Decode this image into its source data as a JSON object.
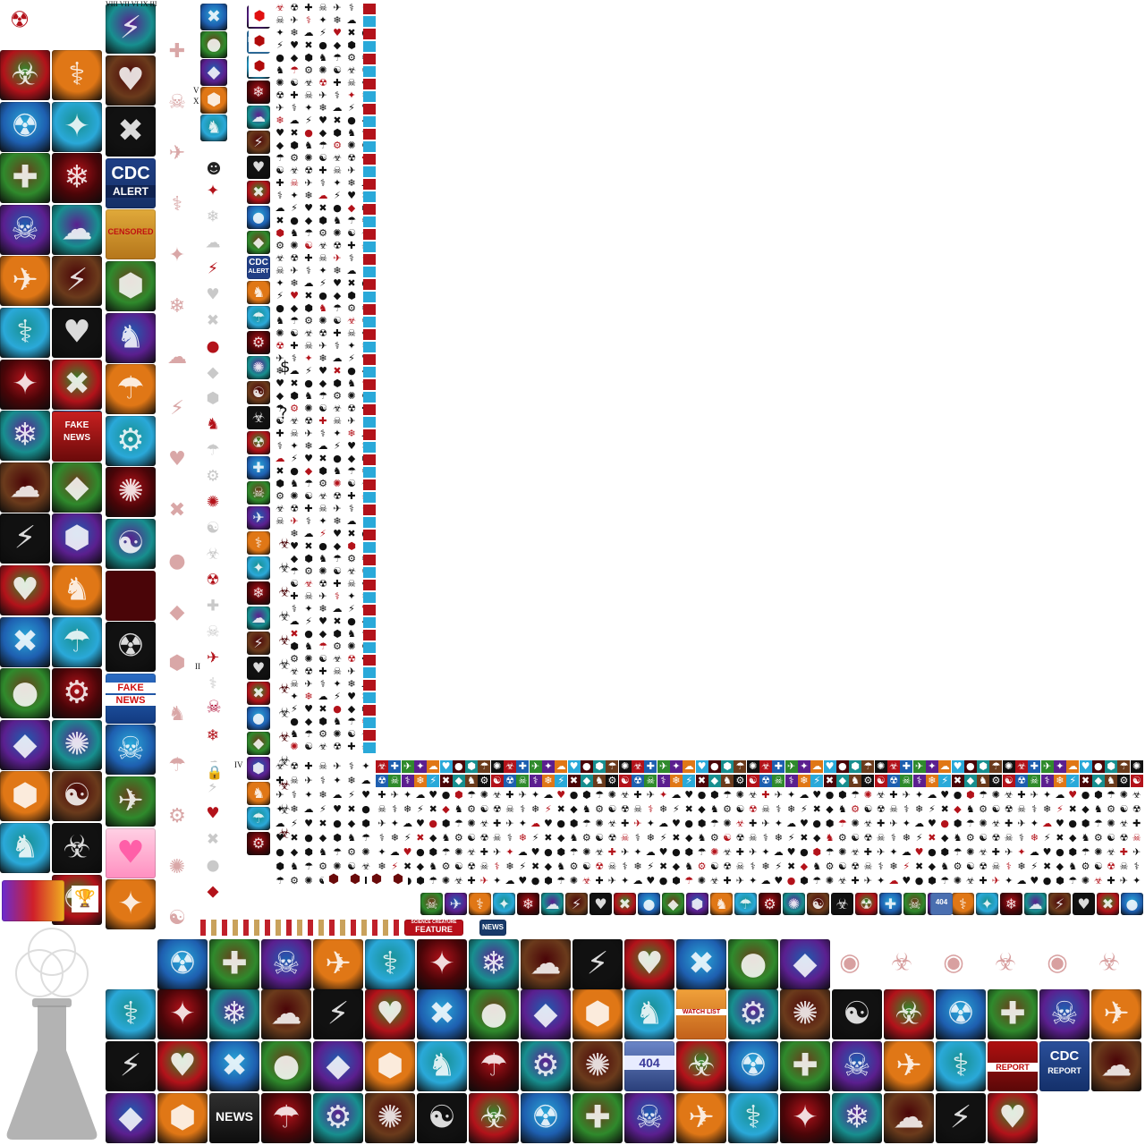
{
  "sheet": {
    "background": "#ffffff"
  },
  "labels": {
    "roman_top": "VIII VII VI IX III",
    "roman_v": "V",
    "roman_x": "X",
    "roman_ii": "II",
    "roman_iv": "IV",
    "cdc_alert_1": "CDC",
    "cdc_alert_2": "ALERT",
    "censored": "CENSORED",
    "fake_news_1": "FAKE",
    "fake_news_2": "NEWS",
    "news_small": "NEWS",
    "cdc_small_1": "CDC",
    "cdc_small_2": "ALERT",
    "feature_top": "SCIENCE CREATURE",
    "feature": "FEATURE",
    "news_banner": "NEWS",
    "watch_list": "WATCH LIST",
    "error_404": "404",
    "report": "REPORT",
    "cdc_report_1": "CDC",
    "cdc_report_2": "REPORT",
    "news_bottom": "NEWS",
    "dollar": "$",
    "question": "?",
    "error_404_small": "404"
  },
  "icons": {
    "left_column_a": [
      "radiation-badge-icon",
      "earth-icon",
      "uk-flag-map-icon",
      "fingerprint-icon",
      "planes-icon",
      "africa-map-icon",
      "skull-graffiti-icon",
      "prison-bars-icon",
      "santa-icon",
      "game-box-icon",
      "tree-icon",
      "earth-glow-icon",
      "fake-newspaper-icon",
      "brain-tentacles-icon",
      "riot-fire-icon",
      "earth-marker-icon",
      "earth-green-icon"
    ],
    "left_column_b": [
      "hex-grid-icon",
      "white-hands-icon",
      "biohazard-red-icon",
      "lab-flask-icon",
      "smoke-city-icon",
      "biohazard-glow-icon",
      "zombie-crowd-icon",
      "medical-hands-icon",
      "fake-news-paper-icon",
      "mechanical-arm-icon",
      "ape-face-icon",
      "fist-icon",
      "soldiers-icon",
      "energy-orb-icon",
      "demon-crowd-icon",
      "neurons-icon",
      "petri-dish-icon"
    ],
    "left_column_c": [
      "game-card-icon",
      "firefox-globe-icon",
      "virus-marker-icon",
      "cdc-alert-icon",
      "censored-icon",
      "robot-hands-icon",
      "biohazard-black-icon",
      "piggy-bank-icon",
      "purple-demon-icon",
      "flask-potion-icon",
      "cloud-burst-icon",
      "dark-red-tile-icon",
      "skull-desert-icon",
      "fake-news-hand-icon",
      "nuke-explosion-icon",
      "olympic-rings-icon",
      "heart-icon",
      "sanitizer-icon"
    ],
    "bottom_row_1": [
      "beach-hut-icon",
      "worm-icon",
      "birds-icon",
      "red-virus-icon",
      "explosion-icon",
      "heart-organ-icon",
      "shrimp-icon",
      "jets-icon",
      "airplane-t-icon",
      "praying-figure-icon",
      "hearts-marker-icon",
      "broken-piggy-icon",
      "storm-orb-icon"
    ],
    "bottom_row_2": [
      "city-aerial-icon",
      "farm-aerial-icon",
      "corpse-icon",
      "drone-icon",
      "hazmat-suit-icon",
      "no-entry-icon",
      "ape-icon",
      "syringe-icon",
      "ape-mask-icon",
      "gorilla-icon",
      "fire-figure-icon",
      "watch-list-icon",
      "house-snow-icon",
      "medical-case-icon",
      "shadow-figure-icon",
      "shadow-people-icon",
      "paper-marker-icon",
      "volcano-plane-icon",
      "earth-question-icon",
      "lightning-earth-icon",
      "cells-icon"
    ],
    "bottom_row_3": [
      "olympic-torch-icon",
      "shipwreck-icon",
      "red-cell-icon",
      "cut-fruit-icon",
      "x-glow-icon",
      "cell-split-icon",
      "syringe-blue-icon",
      "cow-icon",
      "heartbeat-monitor-icon",
      "earth-fire-icon",
      "404-monitor-icon",
      "lock-face-icon",
      "demon-glow-icon",
      "tree-roots-icon",
      "screen-static-icon",
      "briefcase-icon",
      "wizard-icon",
      "report-icon",
      "cdc-report-icon",
      "hand-crowd-icon",
      "zombie-silhouette-icon"
    ],
    "bottom_row_4": [
      "earth-hex-icon",
      "skull-red-icon",
      "news-icon",
      "newspaper-icon",
      "wave-icon",
      "soldier-icon",
      "virus-screen-icon",
      "soldier-gun-icon",
      "fruit-lock-icon",
      "cdc-report-marker-icon",
      "timer-icon",
      "zombie-fire-icon",
      "brain-icon",
      "chain-lock-icon",
      "hooded-figure-icon",
      "no-sign-icon",
      "meditating-icon",
      "spiral-icon"
    ],
    "small_symbols": [
      "biohazard-symbol-icon",
      "skull-symbol-icon",
      "bird-symbol-icon",
      "rat-symbol-icon",
      "dollar-symbol-icon",
      "question-symbol-icon",
      "target-symbol-icon",
      "bone-symbol-icon",
      "lungs-symbol-icon",
      "brain-symbol-icon",
      "dna-symbol-icon",
      "heart-symbol-icon",
      "hand-symbol-icon",
      "eye-symbol-icon",
      "tooth-symbol-icon",
      "plane-symbol-icon",
      "boat-symbol-icon",
      "lock-symbol-icon",
      "trophy-symbol-icon",
      "graduation-cap-icon"
    ]
  },
  "colors": {
    "red": "#b3121a",
    "dark_red": "#4a0508",
    "blue": "#1e5fb0",
    "cyan": "#2aa9d9",
    "green": "#2f8a2c",
    "purple": "#5b1f8f",
    "orange": "#e07716",
    "yellow": "#f2c21a",
    "black": "#111111",
    "grey": "#8a8a8a",
    "pink": "#ff5fa8",
    "sand": "#c9a25c",
    "teal": "#178f8f",
    "brown": "#6b3b1c"
  }
}
